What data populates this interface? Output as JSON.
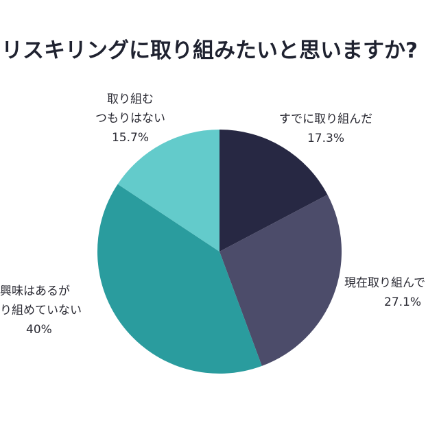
{
  "chart_data": {
    "type": "pie",
    "title": "リスキリングに取り組みたいと思いますか?",
    "start_angle": "top",
    "direction": "clockwise",
    "slices": [
      {
        "label_lines": [
          "すでに取り組んだ"
        ],
        "value": 17.3,
        "value_label": "17.3%",
        "color": "#272843"
      },
      {
        "label_lines": [
          "現在取り組んで"
        ],
        "value": 27.1,
        "value_label": "27.1%",
        "color": "#4c4c6a"
      },
      {
        "label_lines": [
          "興味はあるが",
          "り組めていない"
        ],
        "value": 40,
        "value_label": "40%",
        "color": "#2a9c9e"
      },
      {
        "label_lines": [
          "取り組む",
          "つもりはない"
        ],
        "value": 15.7,
        "value_label": "15.7%",
        "color": "#63cbcb"
      }
    ]
  }
}
